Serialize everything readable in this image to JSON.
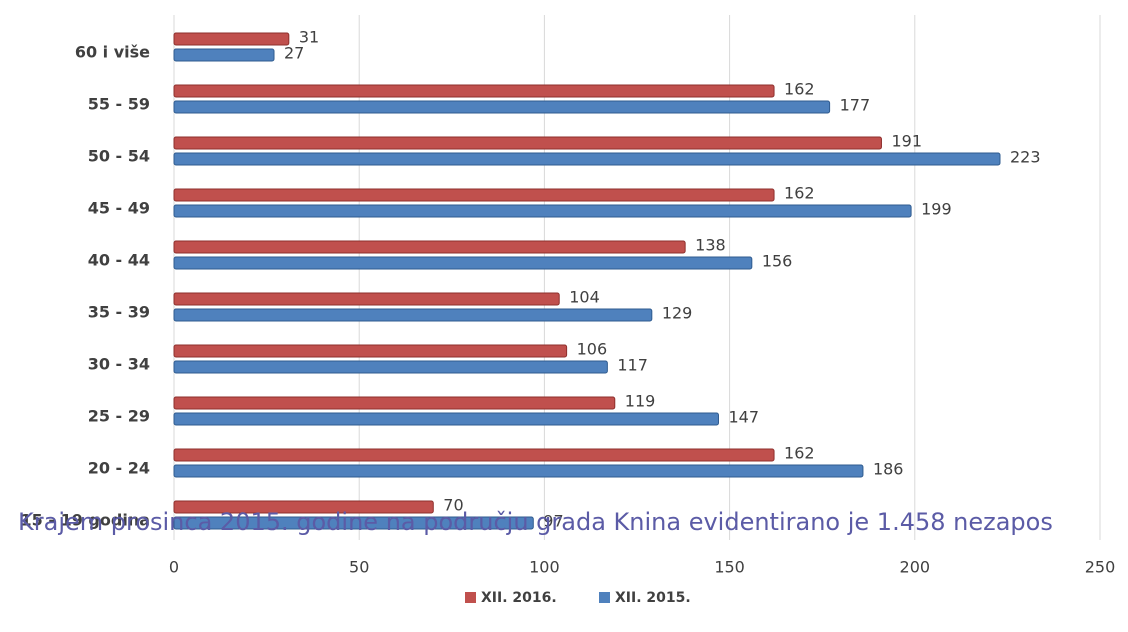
{
  "chart_data": {
    "type": "hbar",
    "categories": [
      "60 i više",
      "55 - 59",
      "50 - 54",
      "45 - 49",
      "40 - 44",
      "35 - 39",
      "30 - 34",
      "25 - 29",
      "20 - 24",
      "15 - 19 godina"
    ],
    "series": [
      {
        "name": "XII. 2016.",
        "color": "#c0504d",
        "values": [
          31,
          162,
          191,
          162,
          138,
          104,
          106,
          119,
          162,
          70
        ]
      },
      {
        "name": "XII. 2015.",
        "color": "#4f81bd",
        "values": [
          27,
          177,
          223,
          199,
          156,
          129,
          117,
          147,
          186,
          97
        ]
      }
    ],
    "xlim": [
      0,
      250
    ],
    "xticks": [
      0,
      50,
      100,
      150,
      200,
      250
    ],
    "grid": true,
    "legend": "bottom",
    "annotation": "Krajem prosinca 2015. godine na području grada Knina evidentirano je 1.458 nezapos"
  }
}
